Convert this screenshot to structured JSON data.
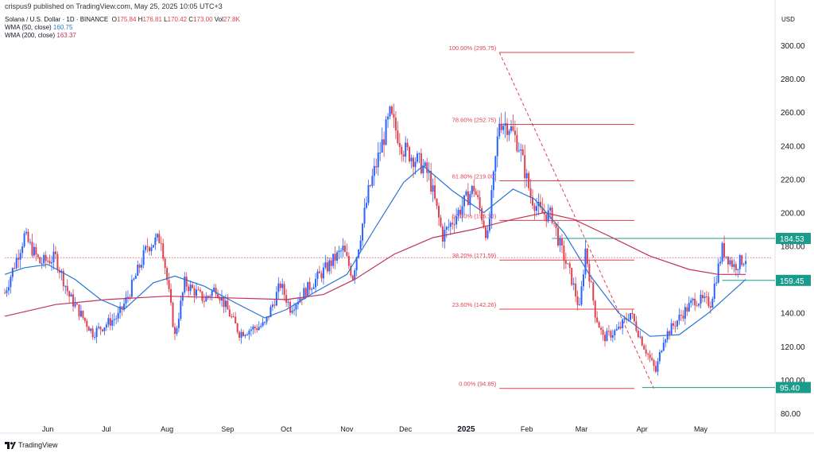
{
  "header": {
    "publisher_line": "crispus9 published on TradingView.com, May 25, 2025 10:05 UTC+3"
  },
  "legend": {
    "symbol": "Solana / U.S. Dollar · 1D · BINANCE",
    "o_label": "O",
    "o": "175.84",
    "h_label": "H",
    "h": "176.81",
    "l_label": "L",
    "l": "170.42",
    "c_label": "C",
    "c": "173.00",
    "vol_label": "Vol",
    "vol": "27.8K",
    "wma50_label": "WMA (50, close)",
    "wma50_value": "160.75",
    "wma200_label": "WMA (200, close)",
    "wma200_value": "163.37"
  },
  "currency": "USD",
  "footer": {
    "brand": "TradingView"
  },
  "colors": {
    "up": "#2962ff",
    "down": "#e0404e",
    "wma50": "#2a74d6",
    "wma200": "#c4325a",
    "fib": "#e0404e",
    "tag": "#1a9c8a"
  },
  "chart_data": {
    "type": "candlestick",
    "ylim": [
      80,
      300
    ],
    "y_ticks": [
      80,
      100,
      120,
      140,
      160,
      180,
      200,
      220,
      240,
      260,
      280,
      300
    ],
    "x_ticks": [
      {
        "label": "Jun",
        "date": "2024-06-01"
      },
      {
        "label": "Jul",
        "date": "2024-07-01"
      },
      {
        "label": "Aug",
        "date": "2024-08-01"
      },
      {
        "label": "Sep",
        "date": "2024-09-01"
      },
      {
        "label": "Oct",
        "date": "2024-10-01"
      },
      {
        "label": "Nov",
        "date": "2024-11-01"
      },
      {
        "label": "Dec",
        "date": "2024-12-01"
      },
      {
        "label": "2025",
        "date": "2025-01-01",
        "bold": true
      },
      {
        "label": "Feb",
        "date": "2025-02-01"
      },
      {
        "label": "Mar",
        "date": "2025-03-01"
      },
      {
        "label": "Apr",
        "date": "2025-04-01"
      },
      {
        "label": "May",
        "date": "2025-05-01"
      }
    ],
    "x_range": [
      "2024-05-10",
      "2025-06-08"
    ],
    "price_keypoints": [
      [
        "2024-05-10",
        152
      ],
      [
        "2024-05-20",
        186
      ],
      [
        "2024-05-28",
        170
      ],
      [
        "2024-06-05",
        173
      ],
      [
        "2024-06-12",
        150
      ],
      [
        "2024-06-24",
        128
      ],
      [
        "2024-07-07",
        138
      ],
      [
        "2024-07-12",
        150
      ],
      [
        "2024-07-22",
        180
      ],
      [
        "2024-07-29",
        185
      ],
      [
        "2024-08-05",
        126
      ],
      [
        "2024-08-10",
        158
      ],
      [
        "2024-08-20",
        148
      ],
      [
        "2024-08-26",
        155
      ],
      [
        "2024-09-07",
        128
      ],
      [
        "2024-09-20",
        133
      ],
      [
        "2024-09-28",
        157
      ],
      [
        "2024-10-03",
        143
      ],
      [
        "2024-10-20",
        165
      ],
      [
        "2024-10-30",
        178
      ],
      [
        "2024-11-04",
        162
      ],
      [
        "2024-11-12",
        212
      ],
      [
        "2024-11-23",
        258
      ],
      [
        "2024-11-30",
        238
      ],
      [
        "2024-12-08",
        230
      ],
      [
        "2024-12-13",
        222
      ],
      [
        "2024-12-20",
        186
      ],
      [
        "2024-12-25",
        195
      ],
      [
        "2025-01-05",
        215
      ],
      [
        "2025-01-12",
        185
      ],
      [
        "2025-01-18",
        255
      ],
      [
        "2025-01-23",
        252
      ],
      [
        "2025-01-28",
        240
      ],
      [
        "2025-02-03",
        210
      ],
      [
        "2025-02-08",
        200
      ],
      [
        "2025-02-14",
        198
      ],
      [
        "2025-02-18",
        180
      ],
      [
        "2025-02-24",
        160
      ],
      [
        "2025-02-28",
        142
      ],
      [
        "2025-03-03",
        178
      ],
      [
        "2025-03-08",
        140
      ],
      [
        "2025-03-12",
        125
      ],
      [
        "2025-03-20",
        130
      ],
      [
        "2025-03-26",
        140
      ],
      [
        "2025-04-02",
        120
      ],
      [
        "2025-04-08",
        105
      ],
      [
        "2025-04-12",
        125
      ],
      [
        "2025-04-22",
        140
      ],
      [
        "2025-04-28",
        148
      ],
      [
        "2025-05-06",
        146
      ],
      [
        "2025-05-12",
        178
      ],
      [
        "2025-05-18",
        168
      ],
      [
        "2025-05-24",
        173
      ]
    ],
    "wma50_points": [
      [
        "2024-05-10",
        163
      ],
      [
        "2024-05-20",
        167
      ],
      [
        "2024-06-01",
        169
      ],
      [
        "2024-06-15",
        160
      ],
      [
        "2024-06-28",
        148
      ],
      [
        "2024-07-10",
        142
      ],
      [
        "2024-07-25",
        158
      ],
      [
        "2024-08-05",
        162
      ],
      [
        "2024-08-20",
        156
      ],
      [
        "2024-09-05",
        146
      ],
      [
        "2024-09-20",
        137
      ],
      [
        "2024-10-01",
        142
      ],
      [
        "2024-10-15",
        152
      ],
      [
        "2024-11-01",
        163
      ],
      [
        "2024-11-15",
        190
      ],
      [
        "2024-11-30",
        218
      ],
      [
        "2024-12-10",
        228
      ],
      [
        "2024-12-25",
        213
      ],
      [
        "2025-01-10",
        200
      ],
      [
        "2025-01-25",
        214
      ],
      [
        "2025-02-05",
        208
      ],
      [
        "2025-02-20",
        188
      ],
      [
        "2025-03-05",
        163
      ],
      [
        "2025-03-20",
        140
      ],
      [
        "2025-04-05",
        126
      ],
      [
        "2025-04-20",
        127
      ],
      [
        "2025-05-05",
        140
      ],
      [
        "2025-05-24",
        160
      ]
    ],
    "wma200_points": [
      [
        "2024-05-10",
        138
      ],
      [
        "2024-06-05",
        145
      ],
      [
        "2024-07-01",
        148
      ],
      [
        "2024-08-01",
        150
      ],
      [
        "2024-09-01",
        149
      ],
      [
        "2024-10-01",
        148
      ],
      [
        "2024-10-20",
        151
      ],
      [
        "2024-11-05",
        160
      ],
      [
        "2024-11-25",
        175
      ],
      [
        "2024-12-15",
        185
      ],
      [
        "2025-01-05",
        190
      ],
      [
        "2025-01-25",
        196
      ],
      [
        "2025-02-10",
        200
      ],
      [
        "2025-02-25",
        196
      ],
      [
        "2025-03-15",
        186
      ],
      [
        "2025-04-05",
        174
      ],
      [
        "2025-04-25",
        166
      ],
      [
        "2025-05-10",
        163
      ],
      [
        "2025-05-24",
        163
      ]
    ],
    "fib_levels": [
      {
        "label": "100.00% (295.75)",
        "value": 295.75
      },
      {
        "label": "78.60% (252.75)",
        "value": 252.75
      },
      {
        "label": "61.80% (219.00)",
        "value": 219.0
      },
      {
        "label": "50.00% (195.30)",
        "value": 195.3
      },
      {
        "label": "38.20% (171.59)",
        "value": 171.59
      },
      {
        "label": "23.60% (142.26)",
        "value": 142.26
      },
      {
        "label": "0.00% (94.85)",
        "value": 94.85
      }
    ],
    "fib_range": [
      "2025-01-18",
      "2025-04-07"
    ],
    "fib_line_end": "2025-03-28",
    "fib_trend": [
      [
        "2025-01-18",
        295.75
      ],
      [
        "2025-04-07",
        94.85
      ]
    ],
    "current_price_line": 173.0,
    "price_tags": [
      {
        "label": "184.53",
        "value": 184.53,
        "line_from": "2025-02-14"
      },
      {
        "label": "159.45",
        "value": 159.45,
        "line_from": "2025-05-12"
      },
      {
        "label": "95.40",
        "value": 95.4,
        "line_from": "2025-04-01"
      }
    ]
  }
}
